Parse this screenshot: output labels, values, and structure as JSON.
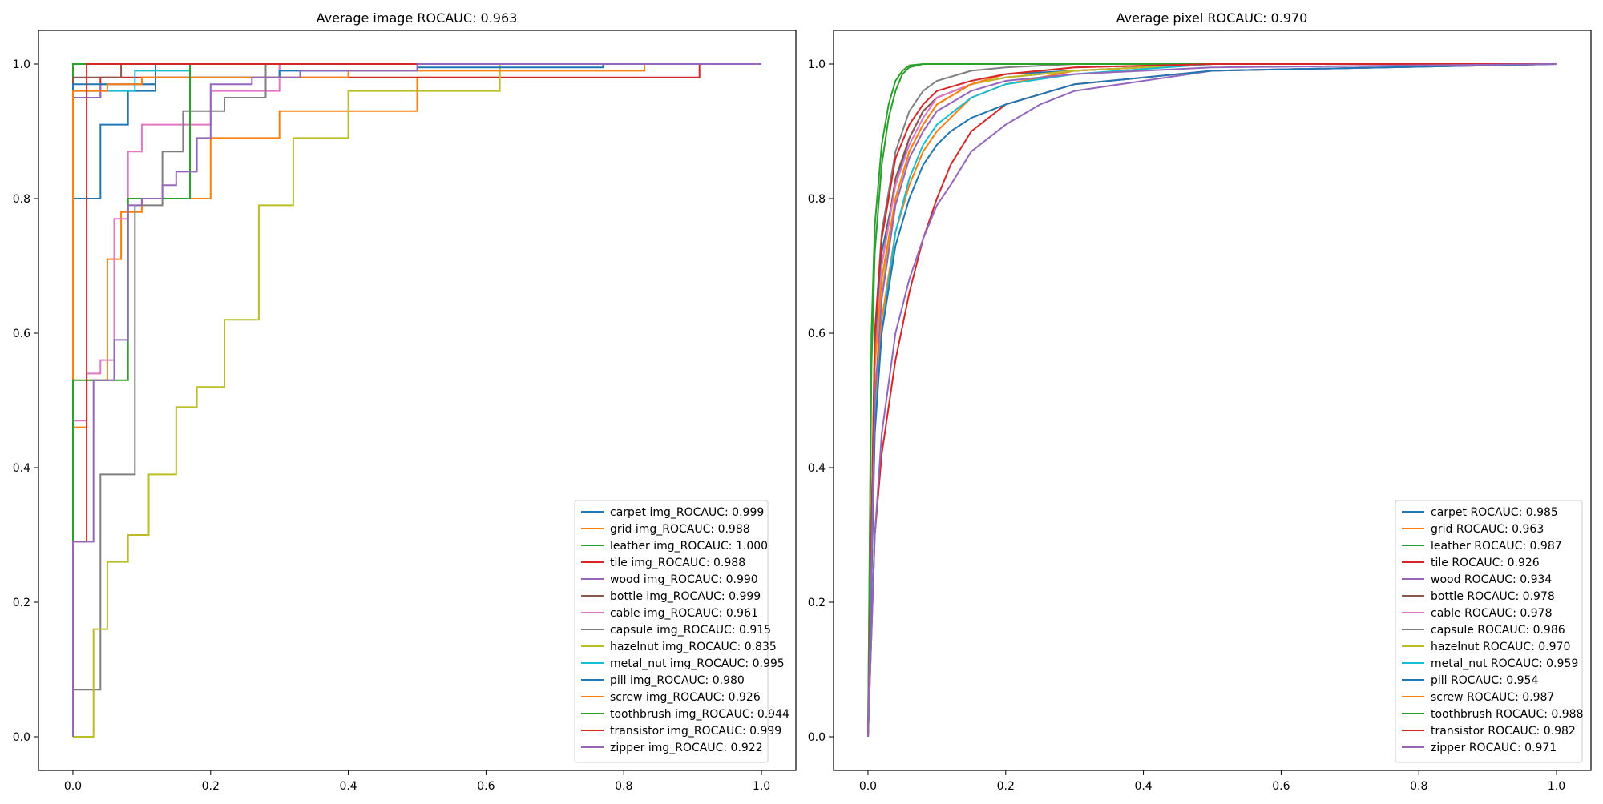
{
  "colors": [
    "#1f77b4",
    "#ff7f0e",
    "#2ca02c",
    "#d62728",
    "#9467bd",
    "#8c564b",
    "#e377c2",
    "#7f7f7f",
    "#bcbd22",
    "#17becf",
    "#1f77b4",
    "#ff7f0e",
    "#2ca02c",
    "#d62728",
    "#9467bd"
  ],
  "chart_data": [
    {
      "type": "line",
      "title": "Average image ROCAUC: 0.963",
      "xlabel": "",
      "ylabel": "",
      "xlim": [
        -0.05,
        1.05
      ],
      "ylim": [
        -0.05,
        1.05
      ],
      "xticks": [
        "0.0",
        "0.2",
        "0.4",
        "0.6",
        "0.8",
        "1.0"
      ],
      "yticks": [
        "0.0",
        "0.2",
        "0.4",
        "0.6",
        "0.8",
        "1.0"
      ],
      "grid": false,
      "legend_position": "lower right",
      "series": [
        {
          "name": "carpet img_ROCAUC: 0.999",
          "step": true,
          "x": [
            0,
            0,
            0.04,
            0.04,
            0.08,
            0.08,
            0.12,
            0.12,
            1
          ],
          "y": [
            0,
            0.8,
            0.8,
            0.91,
            0.91,
            0.96,
            0.96,
            1.0,
            1.0
          ]
        },
        {
          "name": "grid img_ROCAUC: 0.988",
          "step": true,
          "x": [
            0,
            0,
            0.02,
            0.02,
            0.03,
            0.03,
            0.05,
            0.05,
            0.07,
            0.07,
            0.1,
            0.1,
            0.2,
            0.2,
            0.3,
            0.3,
            0.5,
            0.5,
            0.62,
            0.62,
            1
          ],
          "y": [
            0,
            0.46,
            0.46,
            0.53,
            0.53,
            0.53,
            0.53,
            0.71,
            0.71,
            0.78,
            0.78,
            0.8,
            0.8,
            0.89,
            0.89,
            0.93,
            0.93,
            0.98,
            0.98,
            1.0,
            1.0
          ]
        },
        {
          "name": "leather img_ROCAUC: 1.000",
          "step": true,
          "x": [
            0,
            0,
            1
          ],
          "y": [
            0,
            1.0,
            1.0
          ]
        },
        {
          "name": "tile img_ROCAUC: 0.988",
          "step": true,
          "x": [
            0,
            0,
            0.04,
            0.04,
            0.91,
            0.91,
            1
          ],
          "y": [
            0,
            0.95,
            0.95,
            0.98,
            0.98,
            1.0,
            1.0
          ]
        },
        {
          "name": "wood img_ROCAUC: 0.990",
          "step": true,
          "x": [
            0,
            0,
            0.04,
            0.04,
            0.12,
            0.12,
            0.3,
            0.3,
            1
          ],
          "y": [
            0,
            0.95,
            0.95,
            0.97,
            0.97,
            0.98,
            0.98,
            1.0,
            1.0
          ]
        },
        {
          "name": "bottle img_ROCAUC: 0.999",
          "step": true,
          "x": [
            0,
            0,
            0.07,
            0.07,
            1
          ],
          "y": [
            0,
            0.98,
            0.98,
            1.0,
            1.0
          ]
        },
        {
          "name": "cable img_ROCAUC: 0.961",
          "step": true,
          "x": [
            0,
            0,
            0.02,
            0.02,
            0.04,
            0.04,
            0.06,
            0.06,
            0.08,
            0.08,
            0.1,
            0.1,
            0.2,
            0.2,
            0.3,
            0.3,
            1
          ],
          "y": [
            0,
            0.47,
            0.47,
            0.54,
            0.54,
            0.56,
            0.56,
            0.77,
            0.77,
            0.87,
            0.87,
            0.91,
            0.91,
            0.96,
            0.96,
            1.0,
            1.0
          ]
        },
        {
          "name": "capsule img_ROCAUC: 0.915",
          "step": true,
          "x": [
            0,
            0,
            0.04,
            0.04,
            0.09,
            0.09,
            0.13,
            0.13,
            0.16,
            0.16,
            0.22,
            0.22,
            0.28,
            0.28,
            1
          ],
          "y": [
            0,
            0.07,
            0.07,
            0.39,
            0.39,
            0.79,
            0.79,
            0.87,
            0.87,
            0.93,
            0.93,
            0.95,
            0.95,
            1.0,
            1.0
          ]
        },
        {
          "name": "hazelnut img_ROCAUC: 0.835",
          "step": true,
          "x": [
            0,
            0,
            0.03,
            0.03,
            0.05,
            0.05,
            0.08,
            0.08,
            0.11,
            0.11,
            0.15,
            0.15,
            0.18,
            0.18,
            0.22,
            0.22,
            0.27,
            0.27,
            0.32,
            0.32,
            0.4,
            0.4,
            0.62,
            0.62,
            1
          ],
          "y": [
            0,
            0.0,
            0.0,
            0.16,
            0.16,
            0.26,
            0.26,
            0.3,
            0.3,
            0.39,
            0.39,
            0.49,
            0.49,
            0.52,
            0.52,
            0.62,
            0.62,
            0.79,
            0.79,
            0.89,
            0.89,
            0.96,
            0.96,
            1.0,
            1.0
          ]
        },
        {
          "name": "metal_nut img_ROCAUC: 0.995",
          "step": true,
          "x": [
            0,
            0,
            0.09,
            0.09,
            0.17,
            0.17,
            1
          ],
          "y": [
            0,
            0.96,
            0.96,
            0.99,
            0.99,
            1.0,
            1.0
          ]
        },
        {
          "name": "pill img_ROCAUC: 0.980",
          "step": true,
          "x": [
            0,
            0,
            0.12,
            0.12,
            0.3,
            0.3,
            0.5,
            0.5,
            0.77,
            0.77,
            1
          ],
          "y": [
            0,
            0.97,
            0.97,
            0.98,
            0.98,
            0.99,
            0.99,
            0.995,
            0.995,
            1.0,
            1.0
          ]
        },
        {
          "name": "screw img_ROCAUC: 0.926",
          "step": true,
          "x": [
            0,
            0,
            0.05,
            0.05,
            0.1,
            0.1,
            0.2,
            0.2,
            0.4,
            0.4,
            0.6,
            0.6,
            0.83,
            0.83,
            1
          ],
          "y": [
            0,
            0.96,
            0.96,
            0.97,
            0.97,
            0.98,
            0.98,
            0.98,
            0.98,
            0.99,
            0.99,
            0.99,
            0.99,
            1.0,
            1.0
          ]
        },
        {
          "name": "toothbrush img_ROCAUC: 0.944",
          "step": true,
          "x": [
            0,
            0,
            0.08,
            0.08,
            0.17,
            0.17,
            1
          ],
          "y": [
            0,
            0.53,
            0.53,
            0.8,
            0.8,
            1.0,
            1.0
          ]
        },
        {
          "name": "transistor img_ROCAUC: 0.999",
          "step": true,
          "x": [
            0,
            0,
            0.02,
            0.02,
            1
          ],
          "y": [
            0,
            0.29,
            0.29,
            1.0,
            1.0
          ]
        },
        {
          "name": "zipper img_ROCAUC: 0.922",
          "step": true,
          "x": [
            0,
            0,
            0.03,
            0.03,
            0.06,
            0.06,
            0.08,
            0.08,
            0.1,
            0.1,
            0.13,
            0.13,
            0.15,
            0.15,
            0.18,
            0.18,
            0.2,
            0.2,
            0.26,
            0.26,
            0.33,
            0.33,
            0.5,
            0.5,
            1
          ],
          "y": [
            0,
            0.29,
            0.29,
            0.53,
            0.53,
            0.59,
            0.59,
            0.79,
            0.79,
            0.8,
            0.8,
            0.82,
            0.82,
            0.84,
            0.84,
            0.89,
            0.89,
            0.97,
            0.97,
            0.98,
            0.98,
            0.99,
            0.99,
            1.0,
            1.0
          ]
        }
      ]
    },
    {
      "type": "line",
      "title": "Average pixel ROCAUC: 0.970",
      "xlabel": "",
      "ylabel": "",
      "xlim": [
        -0.05,
        1.05
      ],
      "ylim": [
        -0.05,
        1.05
      ],
      "xticks": [
        "0.0",
        "0.2",
        "0.4",
        "0.6",
        "0.8",
        "1.0"
      ],
      "yticks": [
        "0.0",
        "0.2",
        "0.4",
        "0.6",
        "0.8",
        "1.0"
      ],
      "grid": false,
      "legend_position": "lower right",
      "series": [
        {
          "name": "carpet ROCAUC: 0.985",
          "step": false,
          "x": [
            0,
            0.01,
            0.02,
            0.04,
            0.06,
            0.08,
            0.1,
            0.15,
            0.2,
            0.3,
            0.5,
            1
          ],
          "y": [
            0,
            0.58,
            0.72,
            0.82,
            0.89,
            0.93,
            0.95,
            0.97,
            0.985,
            0.99,
            1.0,
            1.0
          ]
        },
        {
          "name": "grid ROCAUC: 0.963",
          "step": false,
          "x": [
            0,
            0.01,
            0.02,
            0.04,
            0.06,
            0.08,
            0.1,
            0.15,
            0.2,
            0.3,
            0.5,
            1
          ],
          "y": [
            0,
            0.48,
            0.62,
            0.75,
            0.82,
            0.87,
            0.9,
            0.95,
            0.97,
            0.99,
            1.0,
            1.0
          ]
        },
        {
          "name": "leather ROCAUC: 0.987",
          "step": false,
          "x": [
            0,
            0.005,
            0.01,
            0.02,
            0.03,
            0.04,
            0.05,
            0.06,
            0.08,
            0.1,
            0.2,
            1
          ],
          "y": [
            0,
            0.55,
            0.72,
            0.85,
            0.92,
            0.96,
            0.985,
            0.995,
            1.0,
            1.0,
            1.0,
            1.0
          ]
        },
        {
          "name": "tile ROCAUC: 0.926",
          "step": false,
          "x": [
            0,
            0.01,
            0.02,
            0.04,
            0.06,
            0.08,
            0.1,
            0.12,
            0.15,
            0.2,
            0.3,
            0.5,
            1
          ],
          "y": [
            0,
            0.3,
            0.42,
            0.56,
            0.66,
            0.74,
            0.8,
            0.85,
            0.9,
            0.94,
            0.97,
            0.99,
            1.0
          ]
        },
        {
          "name": "wood ROCAUC: 0.934",
          "step": false,
          "x": [
            0,
            0.01,
            0.02,
            0.04,
            0.06,
            0.08,
            0.1,
            0.12,
            0.15,
            0.2,
            0.25,
            0.3,
            0.5,
            1
          ],
          "y": [
            0,
            0.3,
            0.45,
            0.6,
            0.68,
            0.74,
            0.79,
            0.82,
            0.87,
            0.91,
            0.94,
            0.96,
            0.99,
            1.0
          ]
        },
        {
          "name": "bottle ROCAUC: 0.978",
          "step": false,
          "x": [
            0,
            0.01,
            0.02,
            0.04,
            0.06,
            0.08,
            0.1,
            0.15,
            0.2,
            0.3,
            0.5,
            1
          ],
          "y": [
            0,
            0.56,
            0.7,
            0.83,
            0.89,
            0.93,
            0.95,
            0.97,
            0.98,
            0.99,
            1.0,
            1.0
          ]
        },
        {
          "name": "cable ROCAUC: 0.978",
          "step": false,
          "x": [
            0,
            0.01,
            0.02,
            0.04,
            0.06,
            0.08,
            0.1,
            0.15,
            0.2,
            0.3,
            0.5,
            1
          ],
          "y": [
            0,
            0.55,
            0.7,
            0.82,
            0.88,
            0.92,
            0.95,
            0.97,
            0.98,
            0.99,
            1.0,
            1.0
          ]
        },
        {
          "name": "capsule ROCAUC: 0.986",
          "step": false,
          "x": [
            0,
            0.01,
            0.02,
            0.04,
            0.06,
            0.08,
            0.1,
            0.15,
            0.2,
            0.3,
            0.5,
            1
          ],
          "y": [
            0,
            0.6,
            0.75,
            0.87,
            0.93,
            0.96,
            0.975,
            0.99,
            0.995,
            1.0,
            1.0,
            1.0
          ]
        },
        {
          "name": "hazelnut ROCAUC: 0.970",
          "step": false,
          "x": [
            0,
            0.01,
            0.02,
            0.04,
            0.06,
            0.08,
            0.1,
            0.15,
            0.2,
            0.3,
            0.5,
            1
          ],
          "y": [
            0,
            0.5,
            0.66,
            0.8,
            0.87,
            0.91,
            0.94,
            0.97,
            0.98,
            0.99,
            1.0,
            1.0
          ]
        },
        {
          "name": "metal_nut ROCAUC: 0.959",
          "step": false,
          "x": [
            0,
            0.01,
            0.02,
            0.04,
            0.06,
            0.08,
            0.1,
            0.15,
            0.2,
            0.3,
            0.5,
            1
          ],
          "y": [
            0,
            0.46,
            0.6,
            0.75,
            0.83,
            0.88,
            0.91,
            0.95,
            0.97,
            0.985,
            1.0,
            1.0
          ]
        },
        {
          "name": "pill ROCAUC: 0.954",
          "step": false,
          "x": [
            0,
            0.01,
            0.02,
            0.04,
            0.06,
            0.08,
            0.1,
            0.12,
            0.15,
            0.2,
            0.3,
            0.5,
            1
          ],
          "y": [
            0,
            0.45,
            0.6,
            0.73,
            0.8,
            0.85,
            0.88,
            0.9,
            0.92,
            0.94,
            0.97,
            0.99,
            1.0
          ]
        },
        {
          "name": "screw ROCAUC: 0.987",
          "step": false,
          "x": [
            0,
            0.01,
            0.02,
            0.04,
            0.06,
            0.08,
            0.1,
            0.15,
            0.2,
            0.3,
            0.5,
            1
          ],
          "y": [
            0,
            0.55,
            0.68,
            0.8,
            0.87,
            0.91,
            0.94,
            0.97,
            0.985,
            0.995,
            1.0,
            1.0
          ]
        },
        {
          "name": "toothbrush ROCAUC: 0.988",
          "step": false,
          "x": [
            0,
            0.005,
            0.01,
            0.02,
            0.03,
            0.04,
            0.05,
            0.06,
            0.08,
            0.1,
            0.2,
            1
          ],
          "y": [
            0,
            0.6,
            0.76,
            0.88,
            0.94,
            0.975,
            0.99,
            0.998,
            1.0,
            1.0,
            1.0,
            1.0
          ]
        },
        {
          "name": "transistor ROCAUC: 0.982",
          "step": false,
          "x": [
            0,
            0.01,
            0.02,
            0.04,
            0.06,
            0.08,
            0.1,
            0.15,
            0.2,
            0.3,
            0.5,
            1
          ],
          "y": [
            0,
            0.6,
            0.74,
            0.86,
            0.91,
            0.94,
            0.96,
            0.975,
            0.985,
            0.995,
            1.0,
            1.0
          ]
        },
        {
          "name": "zipper ROCAUC: 0.971",
          "step": false,
          "x": [
            0,
            0.01,
            0.02,
            0.04,
            0.06,
            0.08,
            0.1,
            0.15,
            0.2,
            0.3,
            0.5,
            1
          ],
          "y": [
            0,
            0.5,
            0.65,
            0.79,
            0.86,
            0.9,
            0.93,
            0.96,
            0.975,
            0.985,
            0.995,
            1.0
          ]
        }
      ]
    }
  ]
}
